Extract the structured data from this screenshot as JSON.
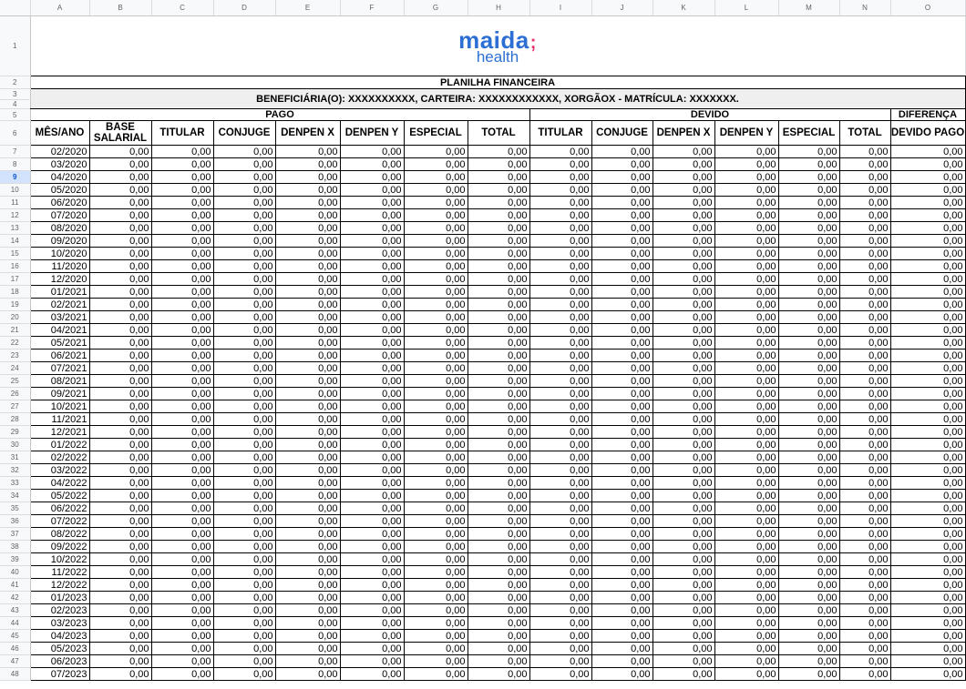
{
  "sheet": {
    "column_letters": [
      "A",
      "B",
      "C",
      "D",
      "E",
      "F",
      "G",
      "H",
      "I",
      "J",
      "K",
      "L",
      "M",
      "N",
      "O"
    ],
    "logo": {
      "top": "maida",
      "bottom": "health"
    },
    "title": "PLANILHA FINANCEIRA",
    "subtitle": "BENEFICIÁRIA(O): XXXXXXXXXX, CARTEIRA: XXXXXXXXXXXX, XORGÃOX - MATRÍCULA: XXXXXXX.",
    "groups": {
      "pago": "PAGO",
      "devido": "DEVIDO",
      "diferenca": "DIFERENÇA"
    },
    "headers": [
      "MÊS/ANO",
      "BASE SALARIAL",
      "TITULAR",
      "CONJUGE",
      "DENPEN X",
      "DENPEN Y",
      "ESPECIAL",
      "TOTAL",
      "TITULAR",
      "CONJUGE",
      "DENPEN X",
      "DENPEN Y",
      "ESPECIAL",
      "TOTAL",
      "DEVIDO PAGO"
    ],
    "months": [
      "02/2020",
      "03/2020",
      "04/2020",
      "05/2020",
      "06/2020",
      "07/2020",
      "08/2020",
      "09/2020",
      "10/2020",
      "11/2020",
      "12/2020",
      "01/2021",
      "02/2021",
      "03/2021",
      "04/2021",
      "05/2021",
      "06/2021",
      "07/2021",
      "08/2021",
      "09/2021",
      "10/2021",
      "11/2021",
      "12/2021",
      "01/2022",
      "02/2022",
      "03/2022",
      "04/2022",
      "05/2022",
      "06/2022",
      "07/2022",
      "08/2022",
      "09/2022",
      "10/2022",
      "11/2022",
      "12/2022",
      "01/2023",
      "02/2023",
      "03/2023",
      "04/2023",
      "05/2023",
      "06/2023",
      "07/2023"
    ],
    "cell_value": "0,00",
    "selected_row": 9
  },
  "colors": {
    "row_header_bg": "#f8f9fa",
    "selected_row": "#d3e3fd",
    "section_bg": "#efefef",
    "logo_blue": "#2c6fd3",
    "logo_pink": "#e8306a"
  }
}
